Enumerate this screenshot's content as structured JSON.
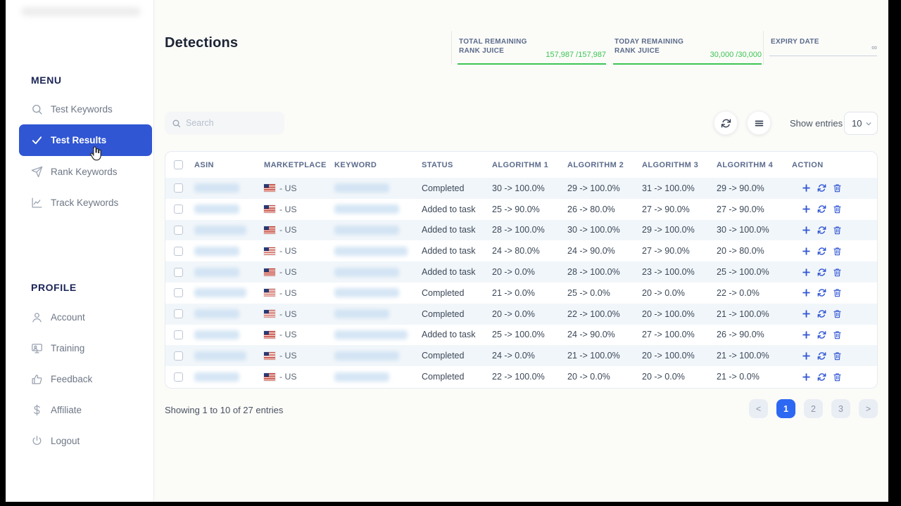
{
  "colors": {
    "accent": "#3056D3",
    "green": "#3BC552",
    "pagination_active": "#2D68F3"
  },
  "sidebar": {
    "menu": {
      "title": "MENU",
      "items": [
        {
          "label": "Test Keywords",
          "icon": "search-icon",
          "active": false
        },
        {
          "label": "Test Results",
          "icon": "check-icon",
          "active": true
        },
        {
          "label": "Rank Keywords",
          "icon": "plane-icon",
          "active": false
        },
        {
          "label": "Track Keywords",
          "icon": "chart-icon",
          "active": false
        }
      ]
    },
    "profile": {
      "title": "PROFILE",
      "items": [
        {
          "label": "Account",
          "icon": "user-icon"
        },
        {
          "label": "Training",
          "icon": "screen-icon"
        },
        {
          "label": "Feedback",
          "icon": "thumb-icon"
        },
        {
          "label": "Affiliate",
          "icon": "dollar-icon"
        },
        {
          "label": "Logout",
          "icon": "power-icon"
        }
      ]
    }
  },
  "header": {
    "title": "Detections",
    "stats": [
      {
        "label": "TOTAL REMAINING RANK JUICE",
        "value": "157,987 /157,987",
        "style": "green"
      },
      {
        "label": "TODAY REMAINING RANK JUICE",
        "value": "30,000 /30,000",
        "style": "green"
      },
      {
        "label": "EXPIRY DATE",
        "value": "∞",
        "style": "muted"
      }
    ]
  },
  "toolbar": {
    "search_placeholder": "Search",
    "show_entries_label": "Show entries",
    "entries_value": "10"
  },
  "table": {
    "columns": [
      "ASIN",
      "MARKETPLACE",
      "KEYWORD",
      "STATUS",
      "ALGORITHM 1",
      "ALGORITHM 2",
      "ALGORITHM 3",
      "ALGORITHM 4",
      "ACTION"
    ],
    "rows": [
      {
        "marketplace": "- US",
        "status": "Completed",
        "alg1": "30 -> 100.0%",
        "alg2": "29 -> 100.0%",
        "alg3": "31 -> 100.0%",
        "alg4": "29 -> 90.0%"
      },
      {
        "marketplace": "- US",
        "status": "Added to task",
        "alg1": "25 -> 90.0%",
        "alg2": "26 -> 80.0%",
        "alg3": "27 -> 90.0%",
        "alg4": "27 -> 90.0%"
      },
      {
        "marketplace": "- US",
        "status": "Added to task",
        "alg1": "28 -> 100.0%",
        "alg2": "30 -> 100.0%",
        "alg3": "29 -> 100.0%",
        "alg4": "30 -> 100.0%"
      },
      {
        "marketplace": "- US",
        "status": "Added to task",
        "alg1": "24 -> 80.0%",
        "alg2": "24 -> 90.0%",
        "alg3": "27 -> 90.0%",
        "alg4": "20 -> 80.0%"
      },
      {
        "marketplace": "- US",
        "status": "Added to task",
        "alg1": "20 -> 0.0%",
        "alg2": "28 -> 100.0%",
        "alg3": "23 -> 100.0%",
        "alg4": "25 -> 100.0%"
      },
      {
        "marketplace": "- US",
        "status": "Completed",
        "alg1": "21 -> 0.0%",
        "alg2": "25 -> 0.0%",
        "alg3": "20 -> 0.0%",
        "alg4": "22 -> 0.0%"
      },
      {
        "marketplace": "- US",
        "status": "Completed",
        "alg1": "20 -> 0.0%",
        "alg2": "22 -> 100.0%",
        "alg3": "20 -> 100.0%",
        "alg4": "21 -> 100.0%"
      },
      {
        "marketplace": "- US",
        "status": "Added to task",
        "alg1": "25 -> 100.0%",
        "alg2": "24 -> 90.0%",
        "alg3": "27 -> 100.0%",
        "alg4": "26 -> 90.0%"
      },
      {
        "marketplace": "- US",
        "status": "Completed",
        "alg1": "24 -> 0.0%",
        "alg2": "21 -> 100.0%",
        "alg3": "20 -> 100.0%",
        "alg4": "21 -> 100.0%"
      },
      {
        "marketplace": "- US",
        "status": "Completed",
        "alg1": "22 -> 100.0%",
        "alg2": "20 -> 0.0%",
        "alg3": "20 -> 0.0%",
        "alg4": "21 -> 0.0%"
      }
    ]
  },
  "footer": {
    "summary": "Showing 1 to 10 of 27 entries",
    "pagination": [
      "<",
      "1",
      "2",
      "3",
      ">"
    ],
    "active_page": "1"
  }
}
